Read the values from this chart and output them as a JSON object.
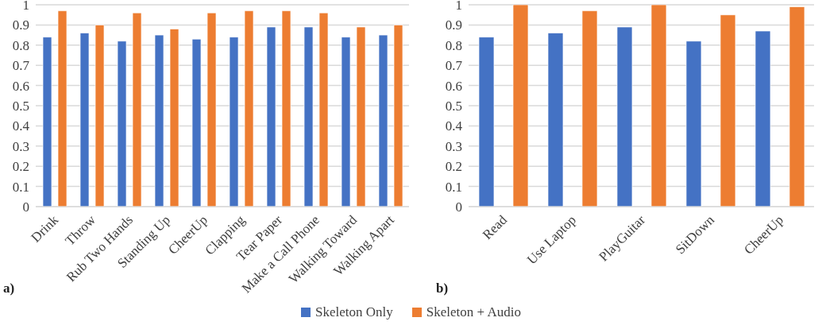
{
  "chart_data": [
    {
      "type": "bar",
      "categories": [
        "Drink",
        "Throw",
        "Rub Two Hands",
        "Standing Up",
        "CheerUp",
        "Clapping",
        "Tear Paper",
        "Make a Call Phone",
        "Walking Toward",
        "Walking Apart"
      ],
      "series": [
        {
          "name": "Skeleton Only",
          "color": "#4472c4",
          "values": [
            0.84,
            0.86,
            0.82,
            0.85,
            0.83,
            0.84,
            0.89,
            0.89,
            0.84,
            0.85
          ]
        },
        {
          "name": "Skeleton + Audio",
          "color": "#ed7d31",
          "values": [
            0.97,
            0.9,
            0.96,
            0.88,
            0.96,
            0.97,
            0.97,
            0.96,
            0.89,
            0.9
          ]
        }
      ],
      "ylim": [
        0,
        1
      ],
      "yticks": [
        0,
        0.1,
        0.2,
        0.3,
        0.4,
        0.5,
        0.6,
        0.7,
        0.8,
        0.9,
        1
      ],
      "grid": "y",
      "legend": "bottom",
      "annotations": [
        "a)"
      ]
    },
    {
      "type": "bar",
      "categories": [
        "Read",
        "Use Laptop",
        "PlayGuitar",
        "SitDown",
        "CheerUp"
      ],
      "series": [
        {
          "name": "Skeleton Only",
          "color": "#4472c4",
          "values": [
            0.84,
            0.86,
            0.89,
            0.82,
            0.87
          ]
        },
        {
          "name": "Skeleton + Audio",
          "color": "#ed7d31",
          "values": [
            1.0,
            0.97,
            1.0,
            0.95,
            0.99
          ]
        }
      ],
      "ylim": [
        0,
        1
      ],
      "yticks": [
        0,
        0.1,
        0.2,
        0.3,
        0.4,
        0.5,
        0.6,
        0.7,
        0.8,
        0.9,
        1
      ],
      "grid": "y",
      "annotations": [
        "b)"
      ]
    }
  ]
}
